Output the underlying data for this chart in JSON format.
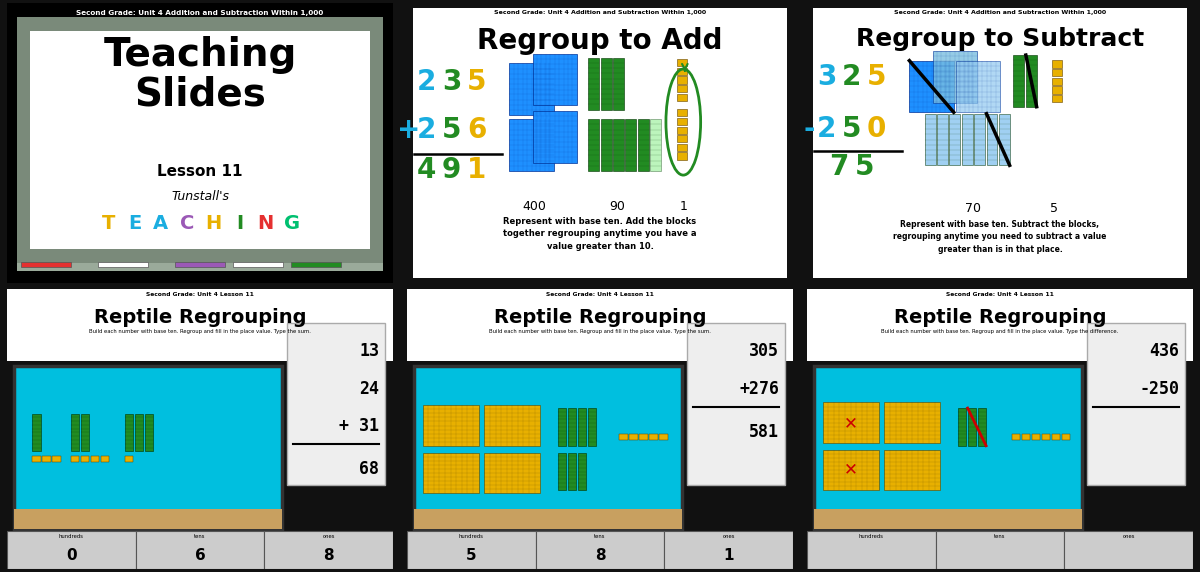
{
  "slides": [
    {
      "subtitle": "Second Grade: Unit 4 Addition and Subtraction Within 1,000",
      "main_title": "Teaching\nSlides",
      "lesson": "Lesson 11",
      "brand_script": "Tunstall's",
      "brand_letters": [
        "T",
        "E",
        "A",
        "C",
        "H",
        "I",
        "N",
        "G"
      ],
      "brand_colors": [
        "#E8B000",
        "#1AADE0",
        "#1AADE0",
        "#9B59B6",
        "#E8B000",
        "#228B22",
        "#E53030",
        "#00C070"
      ],
      "chalk_colors": [
        "#E53030",
        "#ffffff",
        "#9B59B6",
        "#ffffff",
        "#228B22"
      ]
    },
    {
      "subtitle": "Second Grade: Unit 4 Addition and Subtraction Within 1,000",
      "title": "Regroup to Add",
      "num1_digits": [
        "2",
        "3",
        "5"
      ],
      "num1_colors": [
        "#1AADE0",
        "#228B22",
        "#E8B000"
      ],
      "num2_digits": [
        "+",
        "2",
        "5",
        "6"
      ],
      "num2_colors": [
        "#1AADE0",
        "#1AADE0",
        "#228B22",
        "#E8B000"
      ],
      "res_digits": [
        "4",
        "9",
        "1"
      ],
      "res_colors": [
        "#228B22",
        "#228B22",
        "#E8B000"
      ],
      "place_labels": [
        "400",
        "90",
        "1"
      ],
      "description": "Represent with base ten. Add the blocks\ntogether regrouping anytime you have a\nvalue greater than 10."
    },
    {
      "subtitle": "Second Grade: Unit 4 Addition and Subtraction Within 1,000",
      "title": "Regroup to Subtract",
      "num1_digits": [
        "3",
        "2",
        "5"
      ],
      "num1_colors": [
        "#1AADE0",
        "#228B22",
        "#E8B000"
      ],
      "num2_digits": [
        "-",
        "2",
        "5",
        "0"
      ],
      "num2_colors": [
        "#1AADE0",
        "#1AADE0",
        "#228B22",
        "#E8B000"
      ],
      "res_digits": [
        "7",
        "5"
      ],
      "res_colors": [
        "#228B22",
        "#228B22"
      ],
      "place_labels": [
        "70",
        "5"
      ],
      "description": "Represent with base ten. Subtract the blocks,\nregrouping anytime you need to subtract a value\ngreater than is in that place."
    },
    {
      "subtitle": "Second Grade: Unit 4 Lesson 11",
      "title": "Reptile Regrouping",
      "instruction": "Build each number with base ten. Regroup and fill in the place value. Type the sum.",
      "numbers": [
        "13",
        "24",
        "+ 31"
      ],
      "result": "68",
      "place_labels": [
        "hundreds",
        "tens",
        "ones"
      ],
      "place_values": [
        "0",
        "6",
        "8"
      ],
      "tank_bg": "#00BFDF",
      "sand_color": "#C8A060"
    },
    {
      "subtitle": "Second Grade: Unit 4 Lesson 11",
      "title": "Reptile Regrouping",
      "instruction": "Build each number with base ten. Regroup and fill in the place value. Type the sum.",
      "numbers": [
        "305",
        "+276"
      ],
      "result": "581",
      "place_labels": [
        "hundreds",
        "tens",
        "ones"
      ],
      "place_values": [
        "5",
        "8",
        "1"
      ],
      "tank_bg": "#00BFDF",
      "sand_color": "#C8A060"
    },
    {
      "subtitle": "Second Grade: Unit 4 Lesson 11",
      "title": "Reptile Regrouping",
      "instruction": "Build each number with base ten. Regroup and fill in the place value. Type the difference.",
      "numbers": [
        "436",
        "-250"
      ],
      "result": "",
      "place_labels": [
        "hundreds",
        "tens",
        "ones"
      ],
      "place_values": [
        "",
        "",
        ""
      ],
      "tank_bg": "#00BFDF",
      "sand_color": "#C8A060"
    }
  ],
  "overall_bg": "#111111"
}
